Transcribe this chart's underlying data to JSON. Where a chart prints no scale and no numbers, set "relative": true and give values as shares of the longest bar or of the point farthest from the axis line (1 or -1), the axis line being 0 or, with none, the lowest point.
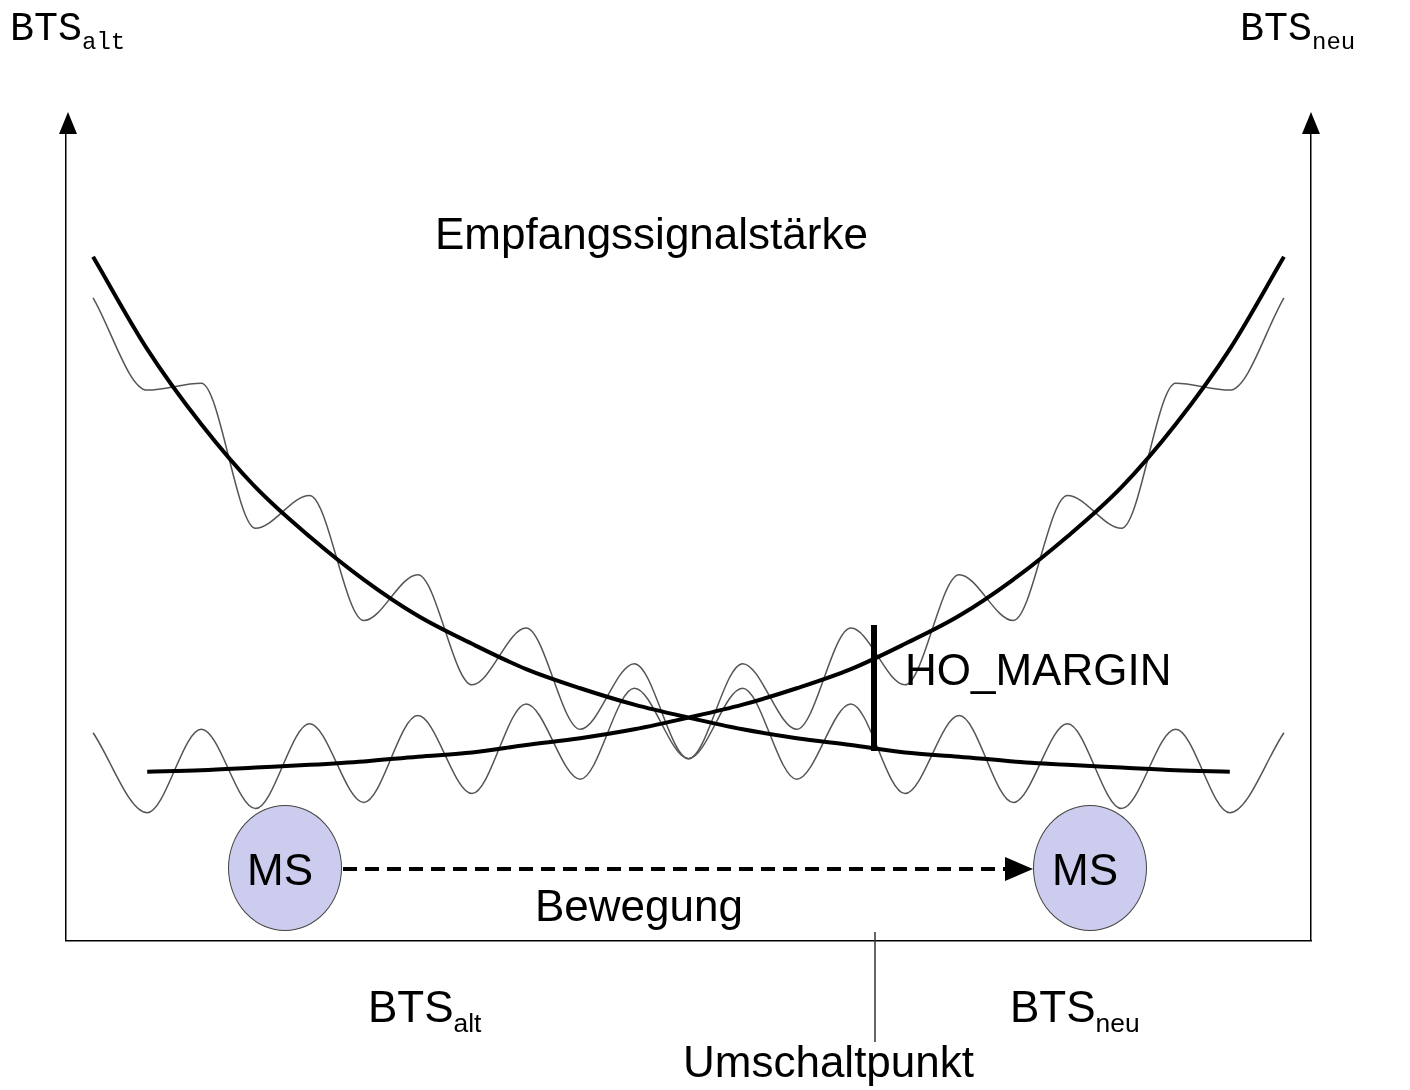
{
  "chart_data": {
    "type": "line",
    "relative": true,
    "categories": [
      null,
      null,
      null,
      null,
      null,
      null,
      null,
      null,
      null,
      null,
      null,
      null,
      null,
      null,
      null,
      null,
      null,
      null,
      null,
      null,
      null,
      null,
      null
    ],
    "series": [
      {
        "color": "#000000",
        "values": [
          1.0,
          0.865,
          0.755,
          0.663,
          0.591,
          0.528,
          0.475,
          0.434,
          0.397,
          0.369,
          0.345,
          0.326,
          0.309,
          0.296,
          0.286,
          0.275,
          0.269,
          0.262,
          0.257,
          0.253,
          0.249,
          0.247,
          null
        ]
      },
      {
        "color": "#000000",
        "values": [
          null,
          0.247,
          0.249,
          0.253,
          0.257,
          0.262,
          0.269,
          0.275,
          0.286,
          0.296,
          0.309,
          0.326,
          0.345,
          0.369,
          0.397,
          0.434,
          0.475,
          0.528,
          0.591,
          0.663,
          0.755,
          0.865,
          1.0
        ]
      },
      {
        "color": "#555555",
        "values": [
          0.94,
          0.805,
          0.815,
          0.603,
          0.651,
          0.468,
          0.535,
          0.374,
          0.457,
          0.309,
          0.405,
          0.266,
          0.369,
          0.236,
          0.346,
          0.215,
          0.329,
          0.202,
          0.317,
          0.193,
          0.309,
          0.187,
          0.304
        ]
      },
      {
        "color": "#555555",
        "values": [
          0.304,
          0.187,
          0.309,
          0.193,
          0.317,
          0.202,
          0.329,
          0.215,
          0.346,
          0.236,
          0.369,
          0.266,
          0.405,
          0.309,
          0.457,
          0.374,
          0.535,
          0.468,
          0.651,
          0.603,
          0.815,
          0.805,
          0.94
        ]
      }
    ],
    "annotations": [
      "BTS$_{alt}$",
      "BTS$_{neu}$",
      "Empfangssignalstärke",
      "HO_MARGIN",
      "MS",
      "MS",
      "Bewegung",
      "BTS$_{alt}$",
      "BTS$_{neu}$",
      "Umschaltpunkt"
    ],
    "legend": false,
    "grid": false,
    "marker": "none",
    "line_style": "solid"
  }
}
